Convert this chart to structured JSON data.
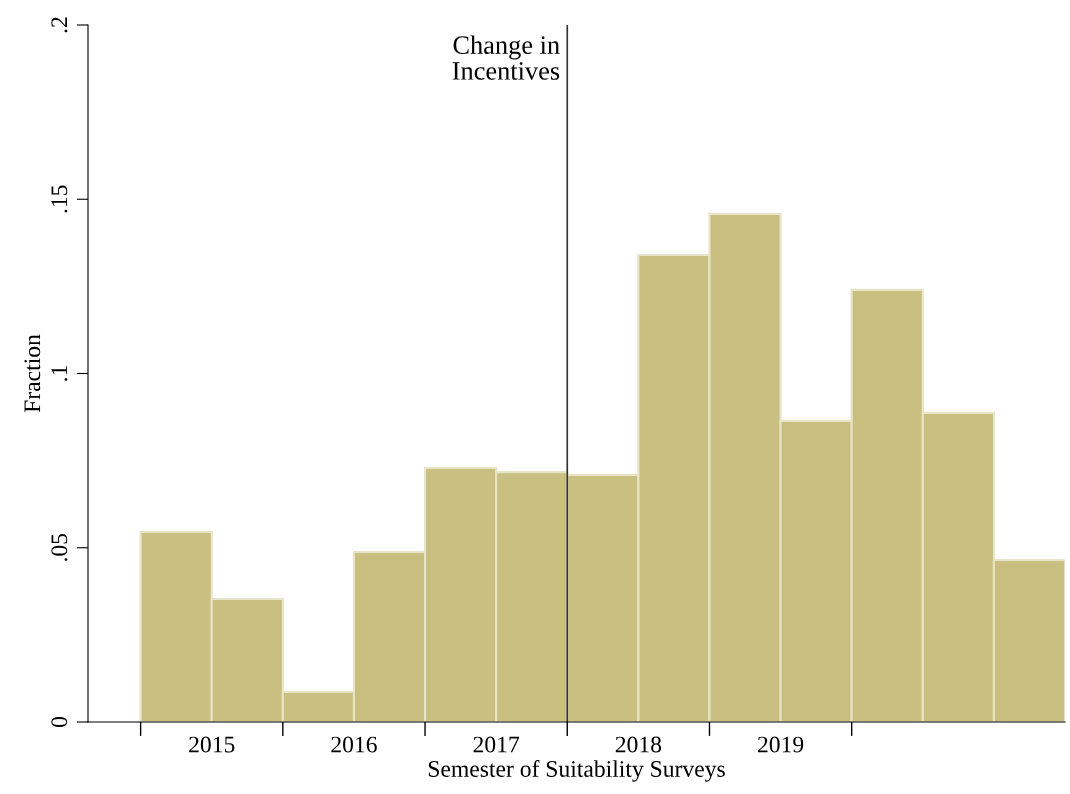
{
  "chart_data": {
    "type": "histogram",
    "xlabel": "Semester of Suitability Surveys",
    "ylabel": "Fraction",
    "bins": [
      2015,
      2015.5,
      2016,
      2016.5,
      2017,
      2017.5,
      2018,
      2018.5,
      2019,
      2019.5,
      2020,
      2020.5,
      2021,
      2021.5
    ],
    "values": [
      0.0545,
      0.0353,
      0.0086,
      0.0488,
      0.0729,
      0.0717,
      0.0709,
      0.134,
      0.1458,
      0.0864,
      0.124,
      0.0887,
      0.0465
    ],
    "color": "#c8bf80",
    "xlim": [
      2014.63,
      2021.5
    ],
    "xticks": [
      {
        "value": 2015,
        "label": null
      },
      {
        "value": 2016,
        "label": null
      },
      {
        "value": 2017,
        "label": null
      },
      {
        "value": 2018,
        "label": null
      },
      {
        "value": 2019,
        "label": null
      },
      {
        "value": 2020,
        "label": null
      },
      {
        "value": 2015.5,
        "label": "2015"
      },
      {
        "value": 2016.5,
        "label": "2016"
      },
      {
        "value": 2017.5,
        "label": "2017"
      },
      {
        "value": 2018.5,
        "label": "2018"
      },
      {
        "value": 2019.5,
        "label": "2019"
      }
    ],
    "ylim": [
      0,
      0.2
    ],
    "yticks": [
      {
        "value": 0,
        "label": "0"
      },
      {
        "value": 0.05,
        "label": ".05"
      },
      {
        "value": 0.1,
        "label": ".1"
      },
      {
        "value": 0.15,
        "label": ".15"
      },
      {
        "value": 0.2,
        "label": ".2"
      }
    ],
    "ref_lines": [
      {
        "axis": "x",
        "value": 2018,
        "label": "Change in\nIncentives",
        "color": "#333333"
      }
    ],
    "grid": false
  }
}
